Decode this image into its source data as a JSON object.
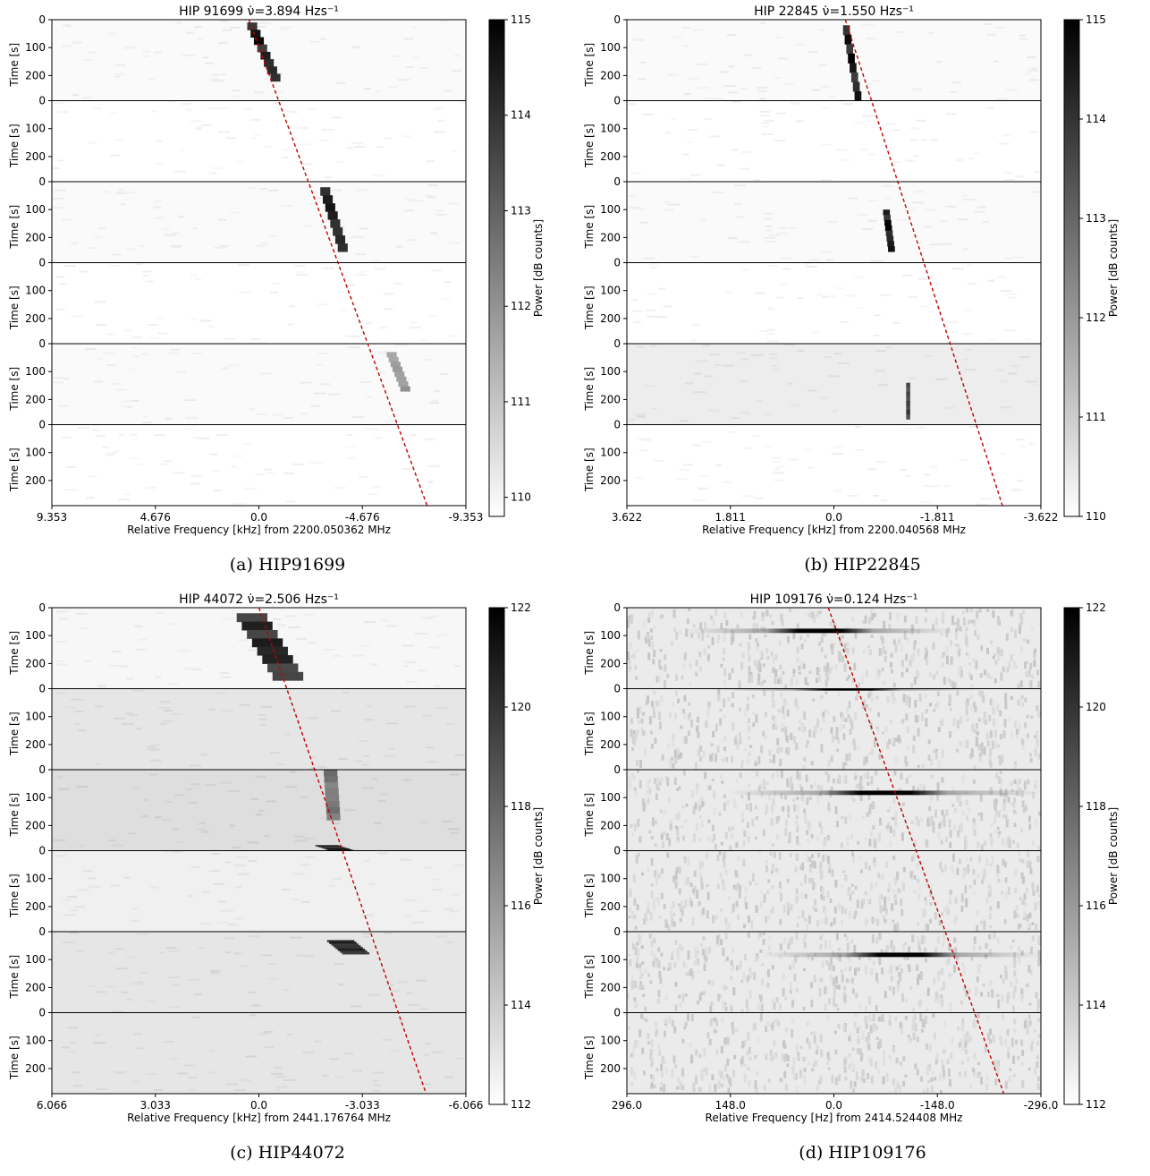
{
  "chart_data": [
    {
      "type": "heatmap",
      "title": "HIP 91699 ν̇=3.894 Hzs⁻¹",
      "xlabel": "Relative Frequency [kHz] from 2200.050362 MHz",
      "ylabel": "Time [s]",
      "colorbar_label": "Power [dB counts]",
      "caption": "(a) HIP91699",
      "x_ticks": [
        "9.353",
        "4.676",
        "0.0",
        "-4.676",
        "-9.353"
      ],
      "xlim": [
        9.353,
        -9.353
      ],
      "y_ticks": [
        "0",
        "100",
        "200"
      ],
      "ylim": [
        290,
        0
      ],
      "colorbar_ticks": [
        "115",
        "114",
        "113",
        "112",
        "111",
        "110"
      ],
      "clim": [
        109.8,
        115
      ],
      "drift_line": {
        "slope_hz_per_s": 3.894,
        "x0_khz": 0.45,
        "x1_khz": -7.6
      },
      "rows": [
        {
          "bg": 0.02,
          "signal": [
            {
              "x0": 0.3,
              "x1": -0.9,
              "y0": 10,
              "y1": 220,
              "w": 0.45,
              "intensity": 1
            }
          ]
        },
        {
          "bg": 0.0,
          "signal": []
        },
        {
          "bg": 0.02,
          "signal": [
            {
              "x0": -3.0,
              "x1": -3.9,
              "y0": 20,
              "y1": 250,
              "w": 0.45,
              "intensity": 1
            }
          ]
        },
        {
          "bg": 0.0,
          "signal": []
        },
        {
          "bg": 0.02,
          "signal": [
            {
              "x0": -6.0,
              "x1": -6.7,
              "y0": 30,
              "y1": 170,
              "w": 0.45,
              "intensity": 0.45
            }
          ]
        },
        {
          "bg": 0.0,
          "signal": []
        }
      ]
    },
    {
      "type": "heatmap",
      "title": "HIP 22845 ν̇=1.550 Hzs⁻¹",
      "xlabel": "Relative Frequency [kHz] from 2200.040568 MHz",
      "ylabel": "Time [s]",
      "colorbar_label": "Power [dB counts]",
      "caption": "(b) HIP22845",
      "x_ticks": [
        "3.622",
        "1.811",
        "0.0",
        "-1.811",
        "-3.622"
      ],
      "xlim": [
        3.622,
        -3.622
      ],
      "y_ticks": [
        "0",
        "100",
        "200"
      ],
      "ylim": [
        290,
        0
      ],
      "colorbar_ticks": [
        "115",
        "114",
        "113",
        "112",
        "111",
        "110"
      ],
      "clim": [
        110,
        115
      ],
      "drift_line": {
        "slope_hz_per_s": 1.55,
        "x0_khz": -0.2,
        "x1_khz": -2.95
      },
      "rows": [
        {
          "bg": 0.02,
          "signal": [
            {
              "x0": -0.22,
              "x1": -0.45,
              "y0": 20,
              "y1": 290,
              "w": 0.12,
              "intensity": 1
            }
          ]
        },
        {
          "bg": 0.0,
          "signal": []
        },
        {
          "bg": 0.02,
          "signal": [
            {
              "x0": -0.92,
              "x1": -1.02,
              "y0": 100,
              "y1": 250,
              "w": 0.12,
              "intensity": 1
            }
          ]
        },
        {
          "bg": 0.0,
          "signal": []
        },
        {
          "bg": 0.07,
          "signal": [
            {
              "x0": -1.3,
              "x1": -1.3,
              "y0": 140,
              "y1": 270,
              "w": 0.07,
              "intensity": 0.85
            }
          ]
        },
        {
          "bg": 0.0,
          "signal": []
        }
      ]
    },
    {
      "type": "heatmap",
      "title": "HIP 44072 ν̇=2.506 Hzs⁻¹",
      "xlabel": "Relative Frequency [kHz] from 2441.176764 MHz",
      "ylabel": "Time [s]",
      "colorbar_label": "Power [dB counts]",
      "caption": "(c) HIP44072",
      "x_ticks": [
        "6.066",
        "3.033",
        "0.0",
        "-3.033",
        "-6.066"
      ],
      "xlim": [
        6.066,
        -6.066
      ],
      "y_ticks": [
        "0",
        "100",
        "200"
      ],
      "ylim": [
        290,
        0
      ],
      "colorbar_ticks": [
        "122",
        "120",
        "118",
        "116",
        "114",
        "112"
      ],
      "clim": [
        112,
        122
      ],
      "drift_line": {
        "slope_hz_per_s": 2.506,
        "x0_khz": 0.0,
        "x1_khz": -4.9
      },
      "rows": [
        {
          "bg": 0.03,
          "signal": [
            {
              "x0": 0.2,
              "x1": -1.0,
              "y0": 20,
              "y1": 260,
              "w": 0.9,
              "intensity": 0.9
            }
          ]
        },
        {
          "bg": 0.1,
          "signal": []
        },
        {
          "bg": 0.13,
          "signal": [
            {
              "x0": -2.1,
              "x1": -2.2,
              "y0": 0,
              "y1": 180,
              "w": 0.4,
              "intensity": 0.6
            },
            {
              "x0": -2.0,
              "x1": -2.5,
              "y0": 270,
              "y1": 300,
              "w": 0.7,
              "intensity": 1
            }
          ]
        },
        {
          "bg": 0.06,
          "signal": []
        },
        {
          "bg": 0.1,
          "signal": [
            {
              "x0": -2.4,
              "x1": -2.9,
              "y0": 30,
              "y1": 80,
              "w": 0.8,
              "intensity": 0.9
            }
          ]
        },
        {
          "bg": 0.1,
          "signal": []
        }
      ]
    },
    {
      "type": "heatmap",
      "title": "HIP 109176 ν̇=0.124 Hzs⁻¹",
      "xlabel": "Relative Frequency [Hz] from 2414.524408 MHz",
      "ylabel": "Time [s]",
      "colorbar_label": "Power [dB counts]",
      "caption": "(d) HIP109176",
      "x_ticks": [
        "296.0",
        "148.0",
        "0.0",
        "-148.0",
        "-296.0"
      ],
      "xlim": [
        296,
        -296
      ],
      "y_ticks": [
        "0",
        "100",
        "200"
      ],
      "ylim": [
        290,
        0
      ],
      "colorbar_ticks": [
        "122",
        "120",
        "118",
        "116",
        "114",
        "112"
      ],
      "clim": [
        112,
        122
      ],
      "drift_line": {
        "slope_hz_per_s": 0.124,
        "x0_khz": 8,
        "x1_khz": -243
      },
      "rows": [
        {
          "bg": 0.08,
          "signal": [
            {
              "x0": 20,
              "x1": 20,
              "y0": 75,
              "y1": 120,
              "w": 60,
              "intensity": 1,
              "horizontal": true
            }
          ]
        },
        {
          "bg": 0.08,
          "signal": [
            {
              "x0": -20,
              "x1": -20,
              "y0": 0,
              "y1": 20,
              "w": 60,
              "intensity": 1,
              "horizontal": true
            }
          ]
        },
        {
          "bg": 0.08,
          "signal": [
            {
              "x0": -90,
              "x1": -90,
              "y0": 75,
              "y1": 120,
              "w": 75,
              "intensity": 1,
              "horizontal": true
            }
          ]
        },
        {
          "bg": 0.08,
          "signal": []
        },
        {
          "bg": 0.08,
          "signal": [
            {
              "x0": -135,
              "x1": -135,
              "y0": 75,
              "y1": 120,
              "w": 75,
              "intensity": 1,
              "horizontal": true
            }
          ]
        },
        {
          "bg": 0.08,
          "signal": []
        }
      ]
    }
  ]
}
